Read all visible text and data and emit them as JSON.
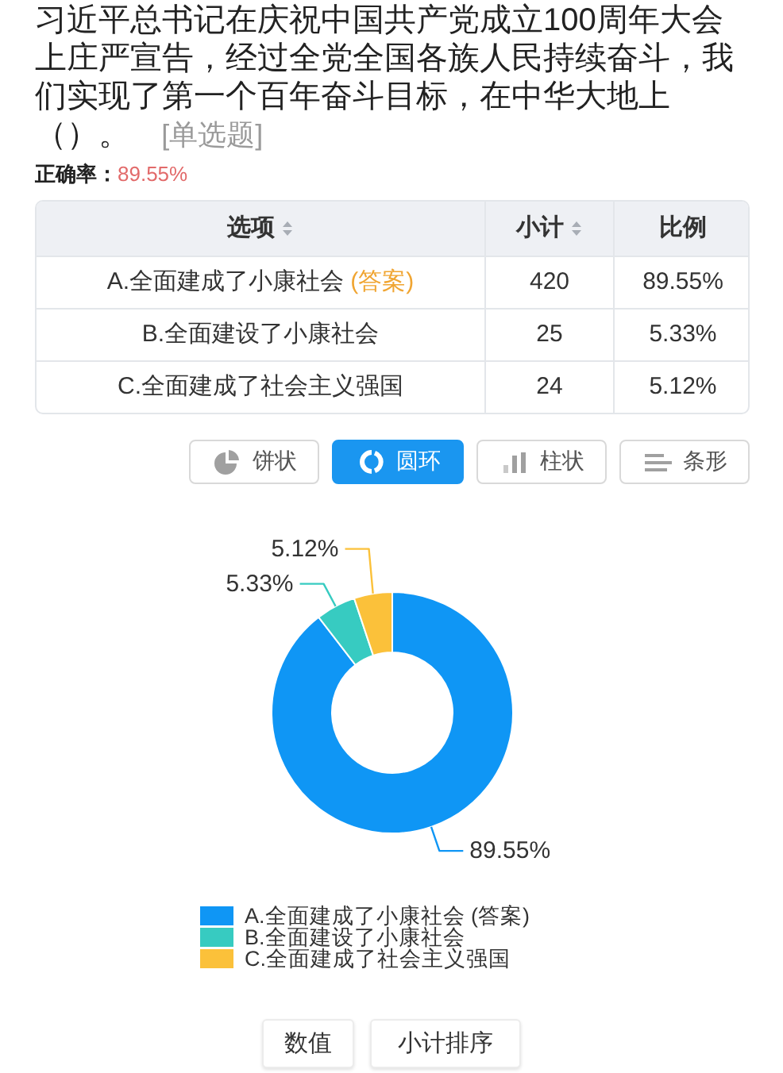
{
  "chart_data": {
    "type": "donut",
    "title": "习近平总书记在庆祝中国共产党成立100周年大会上庄严宣告，经过全党全国各族人民持续奋斗，我们实现了第一个百年奋斗目标，在中华大地上（）。 [单选题]",
    "categories": [
      "A.全面建成了小康社会 (答案)",
      "B.全面建设了小康社会",
      "C.全面建成了社会主义强国"
    ],
    "values": [
      89.55,
      5.33,
      5.12
    ],
    "value_labels": [
      "89.55%",
      "5.33%",
      "5.12%"
    ],
    "colors": [
      "#0f96f5",
      "#37cbc1",
      "#fbc13a"
    ],
    "legend": "bottom",
    "annotations": [
      "正确率：",
      "89.55%",
      "选项",
      "小计",
      "比例",
      "饼状",
      "圆环",
      "柱状",
      "条形",
      "数值",
      "小计排序",
      "420",
      "25",
      "24"
    ]
  }
}
